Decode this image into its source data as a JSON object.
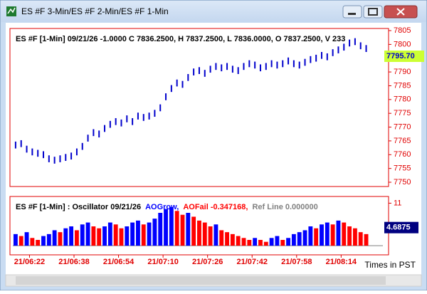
{
  "window": {
    "title": "ES #F 3-Min/ES #F 2-Min/ES #F 1-Min"
  },
  "chart_data": [
    {
      "type": "range-bar",
      "title": "ES #F [1-Min] 09/21/26  -1.0000 C 7836.2500, H 7837.2500, L 7836.0000, O 7837.2500, V 233",
      "x": [
        377,
        379,
        381,
        383,
        385,
        387,
        389,
        391,
        393,
        395,
        397,
        399,
        401,
        403,
        405,
        407,
        409,
        411,
        413,
        415,
        417,
        419,
        421,
        423,
        425,
        427,
        429,
        431,
        433,
        435,
        437,
        439,
        441,
        443,
        445,
        447,
        449,
        451,
        453,
        455,
        457,
        459,
        461,
        463,
        465,
        467,
        469,
        471,
        473,
        475,
        477,
        479,
        481,
        483,
        485,
        487,
        489,
        491,
        493,
        495,
        497,
        499,
        501,
        503
      ],
      "high": [
        7764.75,
        7765.25,
        7763.25,
        7762.25,
        7761.75,
        7761.25,
        7759.75,
        7759.25,
        7759.75,
        7760.25,
        7760.75,
        7762.25,
        7764.25,
        7767.25,
        7769.25,
        7768.75,
        7770.75,
        7772.25,
        7773.25,
        7772.75,
        7774.25,
        7773.25,
        7775.25,
        7774.75,
        7775.25,
        7776.25,
        7778.25,
        7782.25,
        7785.25,
        7787.25,
        7786.75,
        7789.25,
        7791.25,
        7791.75,
        7790.75,
        7792.25,
        7793.25,
        7792.75,
        7793.25,
        7792.25,
        7791.75,
        7793.25,
        7794.25,
        7793.75,
        7792.75,
        7793.25,
        7794.25,
        7793.75,
        7794.25,
        7795.25,
        7794.25,
        7793.75,
        7794.75,
        7795.75,
        7796.25,
        7797.25,
        7796.75,
        7798.25,
        7799.25,
        7800.25,
        7801.75,
        7802.25,
        7800.75,
        7799.75
      ],
      "low": [
        7762.25,
        7762.75,
        7760.75,
        7759.75,
        7759.25,
        7758.75,
        7757.25,
        7756.75,
        7757.25,
        7757.75,
        7758.25,
        7759.75,
        7761.75,
        7764.75,
        7766.75,
        7766.25,
        7768.25,
        7769.75,
        7770.75,
        7770.25,
        7771.75,
        7770.75,
        7772.75,
        7772.25,
        7772.75,
        7773.75,
        7775.75,
        7779.75,
        7782.75,
        7784.75,
        7784.25,
        7786.75,
        7788.75,
        7789.25,
        7788.25,
        7789.75,
        7790.75,
        7790.25,
        7790.75,
        7789.75,
        7789.25,
        7790.75,
        7791.75,
        7791.25,
        7790.25,
        7790.75,
        7791.75,
        7791.25,
        7791.75,
        7792.75,
        7791.75,
        7791.25,
        7792.25,
        7793.25,
        7793.75,
        7794.75,
        7794.25,
        7795.75,
        7796.75,
        7797.75,
        7799.25,
        7799.75,
        7798.25,
        7797.25
      ],
      "color": "#0000cc",
      "xlim": [
        376,
        509
      ],
      "ylim": [
        7750,
        7805
      ],
      "yticks": [
        7750,
        7755,
        7760,
        7765,
        7770,
        7775,
        7780,
        7785,
        7790,
        7795,
        7800,
        7805
      ],
      "last_price": {
        "value": 7795.7,
        "label": "7795.70"
      }
    },
    {
      "type": "oscillator",
      "title": "ES #F [1-Min] : Oscillator 09/21/26",
      "legend": [
        {
          "name": "AOGrow,",
          "color": "#0000ff"
        },
        {
          "name": "AOFail -0.347168,",
          "color": "#ff0000"
        },
        {
          "name": "Ref Line 0.000000",
          "color": "#808080"
        }
      ],
      "ref_line": 0,
      "x": [
        377,
        379,
        381,
        383,
        385,
        387,
        389,
        391,
        393,
        395,
        397,
        399,
        401,
        403,
        405,
        407,
        409,
        411,
        413,
        415,
        417,
        419,
        421,
        423,
        425,
        427,
        429,
        431,
        433,
        435,
        437,
        439,
        441,
        443,
        445,
        447,
        449,
        451,
        453,
        455,
        457,
        459,
        461,
        463,
        465,
        467,
        469,
        471,
        473,
        475,
        477,
        479,
        481,
        483,
        485,
        487,
        489,
        491,
        493,
        495,
        497,
        499,
        501,
        503
      ],
      "values": [
        3,
        2.5,
        3.5,
        2,
        1.5,
        2.5,
        3,
        4,
        3.5,
        4.5,
        5,
        4,
        5.5,
        6,
        5,
        4.5,
        5,
        6,
        5.5,
        4.5,
        5,
        6,
        6.5,
        5.5,
        6,
        7,
        8.5,
        9.5,
        10,
        9,
        8,
        8.5,
        7.5,
        6.5,
        6,
        5,
        5.5,
        4,
        3.5,
        3,
        2.5,
        2,
        1.5,
        2,
        1.5,
        1,
        2,
        2.5,
        1.5,
        2,
        3,
        3.5,
        4,
        5,
        4.5,
        5.5,
        6,
        5.5,
        6.5,
        6,
        5,
        4.5,
        3.5,
        3
      ],
      "xlim": [
        376,
        509
      ],
      "ylim": [
        -2,
        12
      ],
      "yticks": [
        11
      ],
      "last_value": 4.6875,
      "xticks": [
        {
          "value": 382,
          "label": "21/06:22"
        },
        {
          "value": 398,
          "label": "21/06:38"
        },
        {
          "value": 414,
          "label": "21/06:54"
        },
        {
          "value": 430,
          "label": "21/07:10"
        },
        {
          "value": 446,
          "label": "21/07:26"
        },
        {
          "value": 462,
          "label": "21/07:42"
        },
        {
          "value": 478,
          "label": "21/07:58"
        },
        {
          "value": 494,
          "label": "21/08:14"
        }
      ],
      "x_label": "Times in PST"
    }
  ]
}
